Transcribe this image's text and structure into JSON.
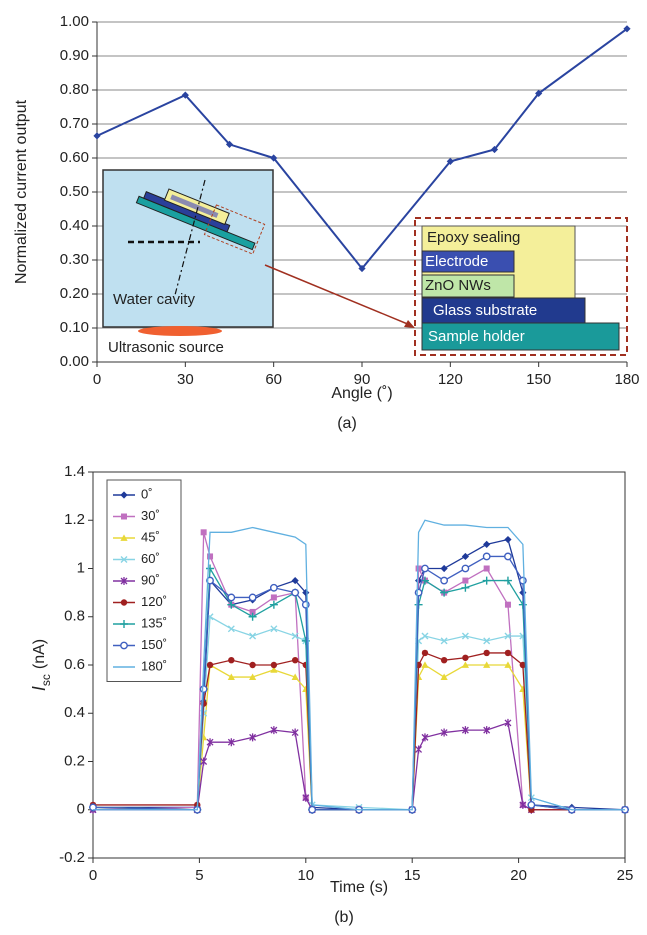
{
  "chart_data": [
    {
      "type": "line",
      "ylabel": "Normalized current output",
      "xlabel": "Angle (˚)",
      "caption": "(a)",
      "x": [
        0,
        30,
        45,
        60,
        90,
        120,
        135,
        150,
        180
      ],
      "values": [
        0.665,
        0.785,
        0.64,
        0.6,
        0.275,
        0.59,
        0.625,
        0.79,
        0.98
      ],
      "color": "#2a44a0",
      "marker": "diamond",
      "xlim": [
        0,
        180
      ],
      "xticks": [
        0,
        30,
        60,
        90,
        120,
        150,
        180
      ],
      "ylim": [
        0,
        1
      ],
      "yticks": [
        {
          "value": 0,
          "label": "0.00"
        },
        {
          "value": 0.1,
          "label": "0.10"
        },
        {
          "value": 0.2,
          "label": "0.20"
        },
        {
          "value": 0.3,
          "label": "0.30"
        },
        {
          "value": 0.4,
          "label": "0.40"
        },
        {
          "value": 0.5,
          "label": "0.50"
        },
        {
          "value": 0.6,
          "label": "0.60"
        },
        {
          "value": 0.7,
          "label": "0.70"
        },
        {
          "value": 0.8,
          "label": "0.80"
        },
        {
          "value": 0.9,
          "label": "0.90"
        },
        {
          "value": 1,
          "label": "1.00"
        }
      ],
      "grid": true,
      "annotations": [
        "Water cavity",
        "Ultrasonic source",
        "Epoxy sealing",
        "Electrode",
        "ZnO NWs",
        "Glass substrate",
        "Sample holder"
      ]
    },
    {
      "type": "line",
      "ylabel": [
        "I",
        "sc",
        "(nA)"
      ],
      "xlabel": "Time (s)",
      "caption": "(b)",
      "x": [
        0,
        4.9,
        5.2,
        5.5,
        6.5,
        7.5,
        8.5,
        9.5,
        10.0,
        10.3,
        12.5,
        15.0,
        15.3,
        15.6,
        16.5,
        17.5,
        18.5,
        19.5,
        20.2,
        20.6,
        22.5,
        25
      ],
      "series": [
        {
          "name": "0˚",
          "color": "#1f3a9a",
          "marker": "diamond",
          "values": [
            0.01,
            0.01,
            0.45,
            0.95,
            0.85,
            0.87,
            0.92,
            0.95,
            0.9,
            0.01,
            0.0,
            0.0,
            0.95,
            1.0,
            1.0,
            1.05,
            1.1,
            1.12,
            0.9,
            0.02,
            0.01,
            0.0
          ]
        },
        {
          "name": "30˚",
          "color": "#c070c0",
          "marker": "square",
          "values": [
            0.0,
            0.01,
            1.15,
            1.05,
            0.85,
            0.82,
            0.88,
            0.9,
            0.05,
            0.0,
            0.0,
            0.0,
            1.0,
            0.95,
            0.9,
            0.95,
            1.0,
            0.85,
            0.02,
            0.0,
            0.0,
            0.0
          ]
        },
        {
          "name": "45˚",
          "color": "#e8d838",
          "marker": "triangle",
          "values": [
            0.01,
            0.0,
            0.3,
            0.6,
            0.55,
            0.55,
            0.58,
            0.55,
            0.5,
            0.0,
            0.0,
            0.0,
            0.55,
            0.6,
            0.55,
            0.6,
            0.6,
            0.6,
            0.5,
            0.0,
            0.0,
            0.0
          ]
        },
        {
          "name": "60˚",
          "color": "#88d4e4",
          "marker": "cross",
          "values": [
            0.0,
            0.0,
            0.4,
            0.8,
            0.75,
            0.72,
            0.75,
            0.72,
            0.7,
            0.02,
            0.01,
            0.0,
            0.7,
            0.72,
            0.7,
            0.72,
            0.7,
            0.72,
            0.72,
            0.05,
            0.0,
            0.0
          ]
        },
        {
          "name": "90˚",
          "color": "#8030a0",
          "marker": "star",
          "values": [
            0.0,
            0.0,
            0.2,
            0.28,
            0.28,
            0.3,
            0.33,
            0.32,
            0.05,
            0.0,
            0.0,
            0.0,
            0.25,
            0.3,
            0.32,
            0.33,
            0.33,
            0.36,
            0.02,
            0.0,
            0.0,
            0.0
          ]
        },
        {
          "name": "120˚",
          "color": "#a02020",
          "marker": "circle",
          "values": [
            0.02,
            0.02,
            0.44,
            0.6,
            0.62,
            0.6,
            0.6,
            0.62,
            0.6,
            0.0,
            0.0,
            0.0,
            0.6,
            0.65,
            0.62,
            0.63,
            0.65,
            0.65,
            0.6,
            0.0,
            0.0,
            0.0
          ]
        },
        {
          "name": "135˚",
          "color": "#20a0a0",
          "marker": "plus",
          "values": [
            0.01,
            0.0,
            0.5,
            1.0,
            0.85,
            0.8,
            0.85,
            0.9,
            0.7,
            0.0,
            0.0,
            0.0,
            0.85,
            0.95,
            0.9,
            0.92,
            0.95,
            0.95,
            0.85,
            0.02,
            0.0,
            0.0
          ]
        },
        {
          "name": "150˚",
          "color": "#4060c0",
          "marker": "ring",
          "values": [
            0.01,
            0.0,
            0.5,
            0.95,
            0.88,
            0.88,
            0.92,
            0.9,
            0.85,
            0.0,
            0.0,
            0.0,
            0.9,
            1.0,
            0.95,
            1.0,
            1.05,
            1.05,
            0.95,
            0.02,
            0.0,
            0.0
          ]
        },
        {
          "name": "180˚",
          "color": "#60b0e0",
          "marker": "none",
          "values": [
            0.0,
            0.0,
            0.6,
            1.15,
            1.15,
            1.17,
            1.15,
            1.13,
            1.1,
            0.02,
            0.0,
            0.0,
            1.15,
            1.2,
            1.18,
            1.18,
            1.17,
            1.17,
            1.1,
            0.05,
            0.0,
            0.0
          ]
        }
      ],
      "xlim": [
        0,
        25
      ],
      "xticks": [
        0,
        5,
        10,
        15,
        20,
        25
      ],
      "ylim": [
        -0.2,
        1.4
      ],
      "yticks": [
        -0.2,
        0,
        0.2,
        0.4,
        0.6,
        0.8,
        1,
        1.2,
        1.4
      ],
      "grid": false,
      "legend": "upper left"
    }
  ]
}
